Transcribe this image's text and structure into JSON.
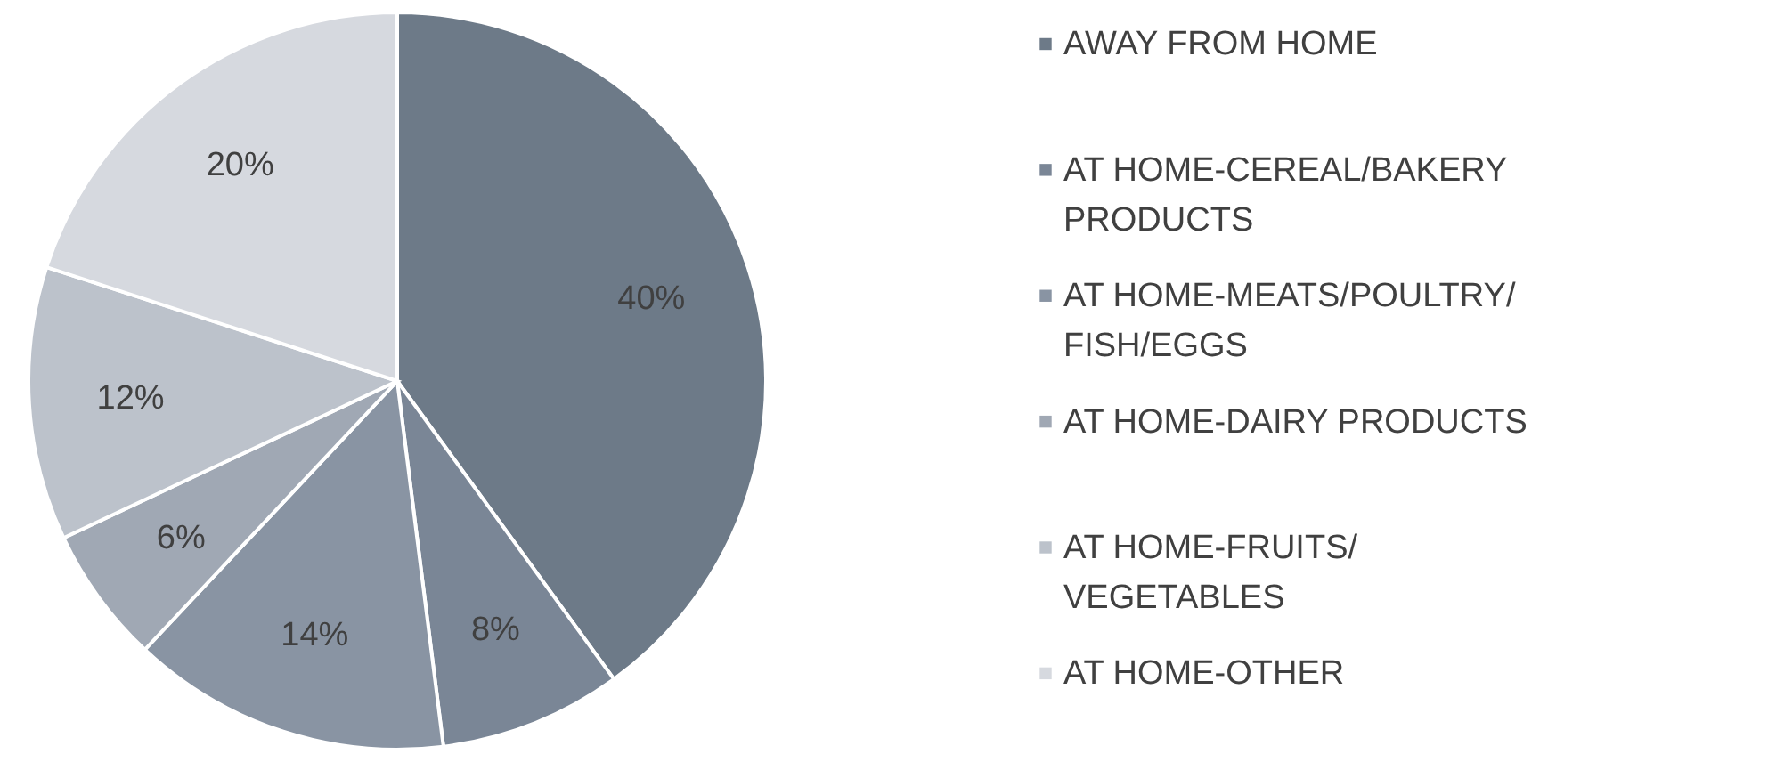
{
  "chart_data": {
    "type": "pie",
    "categories": [
      "AWAY FROM HOME",
      "AT HOME-CEREAL/BAKERY PRODUCTS",
      "AT HOME-MEATS/POULTRY/FISH/EGGS",
      "AT HOME-DAIRY PRODUCTS",
      "AT HOME-FRUITS/VEGETABLES",
      "AT HOME-OTHER"
    ],
    "values": [
      40,
      8,
      14,
      6,
      12,
      20
    ],
    "value_labels": [
      "40%",
      "8%",
      "14%",
      "6%",
      "12%",
      "20%"
    ],
    "colors": [
      "#6d7a88",
      "#7a8696",
      "#8994a3",
      "#a0a8b4",
      "#bcc2cb",
      "#d6d9df"
    ],
    "legend": "right"
  }
}
